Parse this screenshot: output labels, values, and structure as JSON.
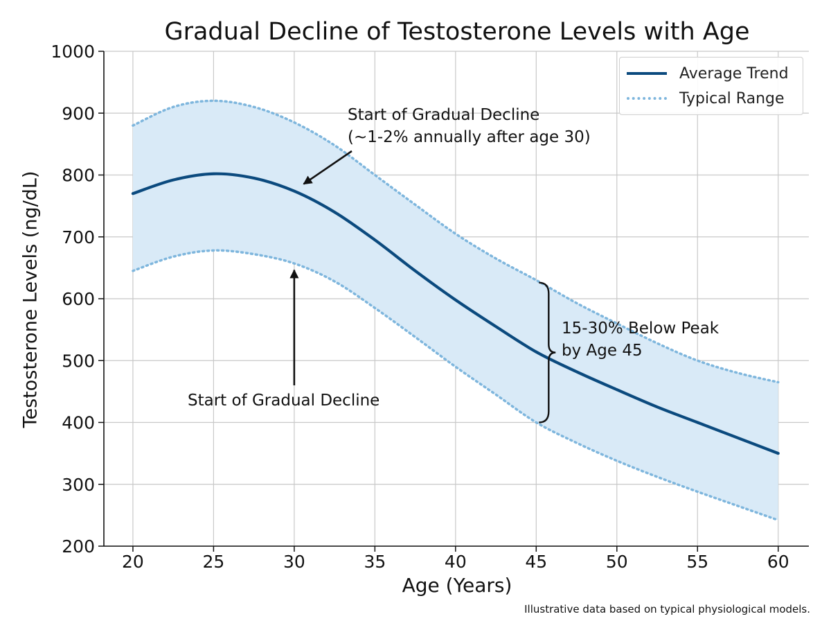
{
  "chart_data": {
    "type": "line",
    "title": "Gradual Decline of Testosterone Levels with Age",
    "xlabel": "Age (Years)",
    "ylabel": "Testosterone Levels (ng/dL)",
    "xlim": [
      18.2,
      61.9
    ],
    "ylim": [
      200,
      1000
    ],
    "xticks": [
      20,
      25,
      30,
      35,
      40,
      45,
      50,
      55,
      60
    ],
    "yticks": [
      200,
      300,
      400,
      500,
      600,
      700,
      800,
      900,
      1000
    ],
    "grid": true,
    "legend_position": "top-right",
    "x": [
      20,
      22.5,
      25,
      27.5,
      30,
      32.5,
      35,
      37.5,
      40,
      42.5,
      45,
      47.5,
      50,
      52.5,
      55,
      57.5,
      60
    ],
    "series": [
      {
        "name": "Average Trend",
        "style": "solid",
        "color": "#0b4a7e",
        "values": [
          770,
          792,
          802,
          795,
          774,
          740,
          695,
          645,
          598,
          555,
          514,
          482,
          453,
          425,
          400,
          375,
          350
        ]
      },
      {
        "name": "Typical Range",
        "style": "dotted",
        "color": "#7eb6dd",
        "role": "upper",
        "values": [
          880,
          910,
          920,
          910,
          885,
          848,
          800,
          752,
          705,
          665,
          630,
          593,
          560,
          528,
          500,
          480,
          465
        ]
      },
      {
        "name": "",
        "style": "dotted",
        "color": "#7eb6dd",
        "role": "lower",
        "values": [
          645,
          668,
          678,
          672,
          657,
          628,
          585,
          538,
          490,
          445,
          400,
          367,
          338,
          312,
          288,
          265,
          242
        ]
      }
    ],
    "band_color": "#d9eaf7",
    "annotations": [
      {
        "text_lines": [
          "Start of Gradual Decline",
          "(~1-2% annually after age 30)"
        ],
        "arrow_to": {
          "x": 30.5,
          "y": 781
        }
      },
      {
        "text_lines": [
          "Start of Gradual Decline"
        ],
        "arrow_to": {
          "x": 30,
          "y": 662
        }
      },
      {
        "text_lines": [
          "15-30% Below Peak",
          "by Age 45"
        ],
        "bracket_y": [
          400,
          626
        ],
        "bracket_x": 45
      }
    ],
    "footnote": "Illustrative data based on typical physiological models."
  }
}
